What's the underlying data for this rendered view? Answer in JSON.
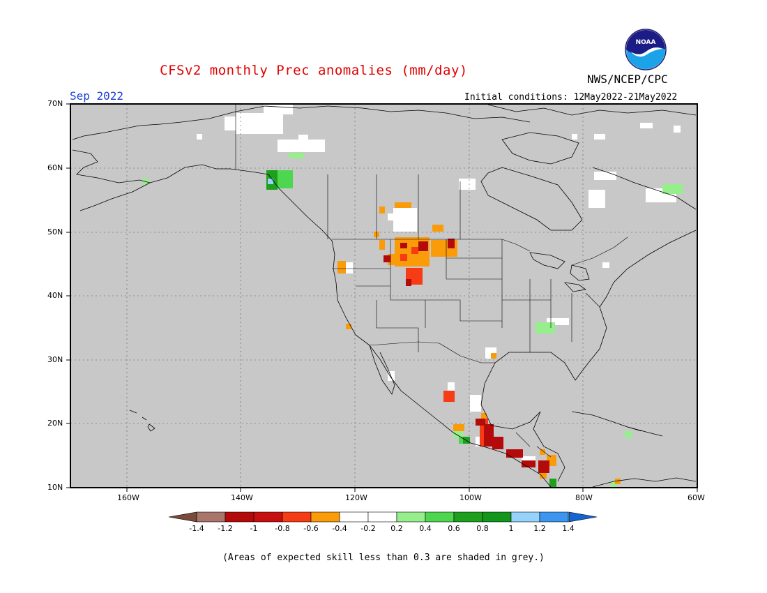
{
  "header": {
    "title": "CFSv2 monthly Prec anomalies (mm/day)",
    "agency": "NWS/NCEP/CPC",
    "month": "Sep 2022",
    "initial_conditions": "Initial conditions: 12May2022-21May2022"
  },
  "logo": {
    "name": "noaa-logo",
    "text": "NOAA"
  },
  "map": {
    "background_color": "#c8c8c8",
    "grid": true,
    "lon_ticks": [
      "160W",
      "140W",
      "120W",
      "100W",
      "80W",
      "60W"
    ],
    "lat_ticks": [
      "70N",
      "60N",
      "50N",
      "40N",
      "30N",
      "20N",
      "10N"
    ]
  },
  "legend": {
    "tick_labels": [
      "-1.4",
      "-1.2",
      "-1",
      "-0.8",
      "-0.6",
      "-0.4",
      "-0.2",
      "0.2",
      "0.4",
      "0.6",
      "0.8",
      "1",
      "1.2",
      "1.4"
    ],
    "colors": [
      "#7a4a3c",
      "#a8766a",
      "#b40a0a",
      "#c80f0f",
      "#f53c14",
      "#fa9b0a",
      "#ffffff",
      "#ffffff",
      "#96ee8c",
      "#4ed650",
      "#1ea01e",
      "#12961c",
      "#96d2fa",
      "#3c96f0",
      "#1464d2"
    ]
  },
  "footnote": "(Areas of expected skill less than 0.3 are shaded in grey.)"
}
